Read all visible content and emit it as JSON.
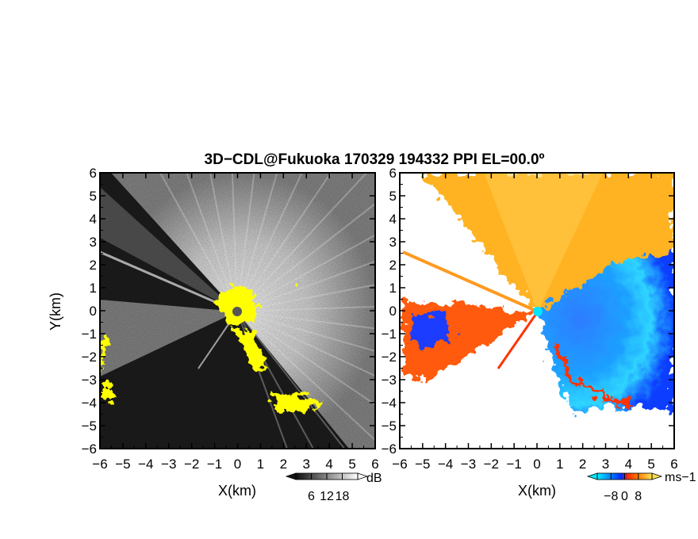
{
  "title": "3D−CDL@Fukuoka 170329 194332 PPI EL=00.0º",
  "colors": {
    "reflectivity_dark": "#1e1e1e",
    "reflectivity_light": "#f2f2f2",
    "clutter": "#ffff00",
    "velocity_neg_strong": "#0033ff",
    "velocity_neg_weak": "#00e5ff",
    "velocity_pos_weak": "#ffcc33",
    "velocity_pos_strong": "#ff3300",
    "radar_site": "#00e5ff"
  },
  "chart_data": [
    {
      "type": "heatmap",
      "panel": "reflectivity",
      "xlabel": "X(km)",
      "ylabel": "Y(km)",
      "xlim": [
        -6,
        6
      ],
      "ylim": [
        -6,
        6
      ],
      "xticks": [
        "−6",
        "−5",
        "−4",
        "−3",
        "−2",
        "−1",
        "0",
        "1",
        "2",
        "3",
        "4",
        "5",
        "6"
      ],
      "yticks": [
        "6",
        "5",
        "4",
        "3",
        "2",
        "1",
        "0",
        "−1",
        "−2",
        "−3",
        "−4",
        "−5",
        "−6"
      ],
      "colorbar": {
        "unit": "dB",
        "ticks": [
          "6",
          "12",
          "18"
        ],
        "range": [
          0,
          24
        ]
      },
      "radar_site": [
        0,
        0
      ]
    },
    {
      "type": "heatmap",
      "panel": "doppler_velocity",
      "xlabel": "X(km)",
      "xlim": [
        -6,
        6
      ],
      "ylim": [
        -6,
        6
      ],
      "xticks": [
        "−6",
        "−5",
        "−4",
        "−3",
        "−2",
        "−1",
        "0",
        "1",
        "2",
        "3",
        "4",
        "5",
        "6"
      ],
      "yticks": [
        "6",
        "5",
        "4",
        "3",
        "2",
        "1",
        "0",
        "−1",
        "−2",
        "−3",
        "−4",
        "−5",
        "−6"
      ],
      "colorbar": {
        "unit": "ms−1",
        "ticks": [
          "−8",
          "0",
          "8"
        ],
        "range": [
          -16,
          16
        ]
      },
      "radar_site": [
        0,
        0
      ]
    }
  ]
}
